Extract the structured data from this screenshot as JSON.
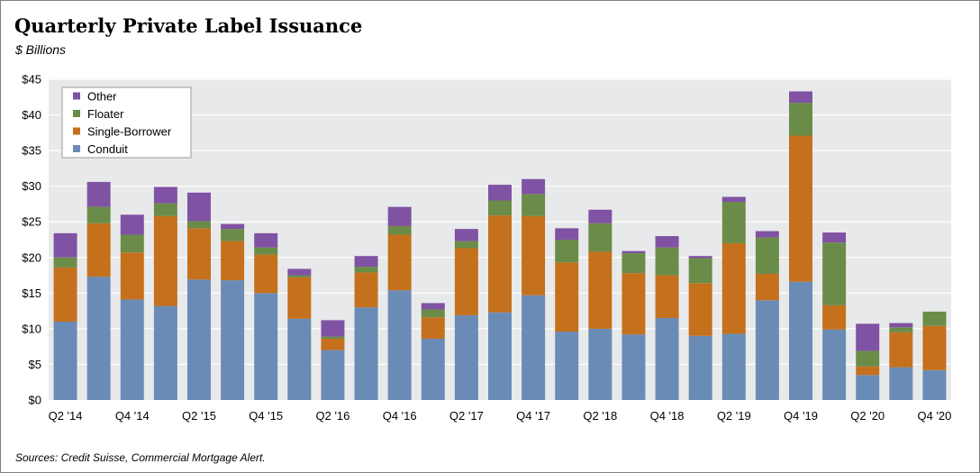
{
  "title": "Quarterly Private Label Issuance",
  "subtitle": "$ Billions",
  "source": "Sources: Credit Suisse, Commercial Mortgage Alert.",
  "chart_data": {
    "type": "bar",
    "stacked": true,
    "title": "Quarterly Private Label Issuance",
    "subtitle": "$ Billions",
    "xlabel": "",
    "ylabel": "",
    "ylim": [
      0,
      45
    ],
    "yticks": [
      0,
      5,
      10,
      15,
      20,
      25,
      30,
      35,
      40,
      45
    ],
    "ytick_labels": [
      "$0",
      "$5",
      "$10",
      "$15",
      "$20",
      "$25",
      "$30",
      "$35",
      "$40",
      "$45"
    ],
    "grid": true,
    "legend_position": "top-left",
    "categories": [
      "Q2 '14",
      "Q3 '14",
      "Q4 '14",
      "Q1 '15",
      "Q2 '15",
      "Q3 '15",
      "Q4 '15",
      "Q1 '16",
      "Q2 '16",
      "Q3 '16",
      "Q4 '16",
      "Q1 '17",
      "Q2 '17",
      "Q3 '17",
      "Q4 '17",
      "Q1 '18",
      "Q2 '18",
      "Q3 '18",
      "Q4 '18",
      "Q1 '19",
      "Q2 '19",
      "Q3 '19",
      "Q4 '19",
      "Q1 '20",
      "Q2 '20",
      "Q3 '20",
      "Q4 '20"
    ],
    "tick_labels": [
      "Q2 '14",
      "",
      "Q4 '14",
      "",
      "Q2 '15",
      "",
      "Q4 '15",
      "",
      "Q2 '16",
      "",
      "Q4 '16",
      "",
      "Q2 '17",
      "",
      "Q4 '17",
      "",
      "Q2 '18",
      "",
      "Q4 '18",
      "",
      "Q2 '19",
      "",
      "Q4 '19",
      "",
      "Q2 '20",
      "",
      "Q4 '20"
    ],
    "series": [
      {
        "name": "Conduit",
        "color": "#6a8bb5",
        "values": [
          11.0,
          17.3,
          14.1,
          13.2,
          16.9,
          16.8,
          15.0,
          11.4,
          7.0,
          13.0,
          15.4,
          8.6,
          11.9,
          12.3,
          14.7,
          9.6,
          10.0,
          9.2,
          11.5,
          9.0,
          9.3,
          14.0,
          16.6,
          9.9,
          3.5,
          4.6,
          4.2
        ]
      },
      {
        "name": "Single-Borrower",
        "color": "#c5701d",
        "values": [
          7.6,
          7.5,
          6.6,
          12.6,
          7.2,
          5.5,
          5.4,
          5.8,
          1.6,
          4.9,
          7.8,
          3.0,
          9.4,
          13.6,
          11.1,
          9.7,
          10.8,
          8.6,
          6.0,
          7.4,
          12.7,
          3.7,
          20.5,
          3.4,
          1.2,
          4.9,
          6.2
        ]
      },
      {
        "name": "Floater",
        "color": "#6a8c48",
        "values": [
          1.4,
          2.3,
          2.5,
          1.8,
          1.0,
          1.7,
          1.0,
          0.3,
          0.3,
          0.8,
          1.2,
          1.1,
          1.0,
          2.1,
          3.1,
          3.2,
          4.0,
          2.8,
          3.9,
          3.5,
          5.8,
          5.1,
          4.6,
          8.8,
          2.2,
          0.7,
          2.0
        ]
      },
      {
        "name": "Other",
        "color": "#8052a3",
        "values": [
          3.4,
          3.5,
          2.8,
          2.3,
          4.0,
          0.7,
          2.0,
          0.9,
          2.3,
          1.5,
          2.7,
          0.9,
          1.7,
          2.2,
          2.1,
          1.6,
          1.9,
          0.3,
          1.6,
          0.3,
          0.7,
          0.9,
          1.6,
          1.4,
          3.8,
          0.6,
          0.0
        ]
      }
    ]
  }
}
